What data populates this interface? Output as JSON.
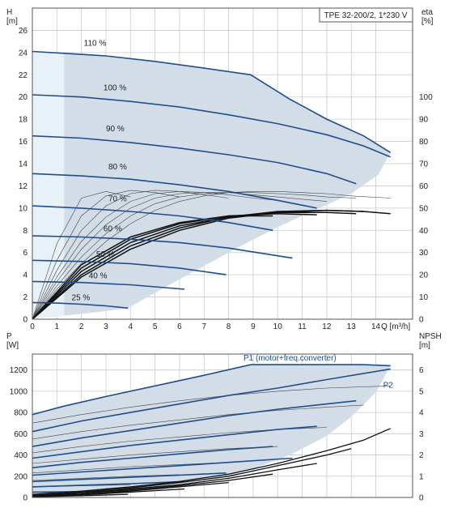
{
  "title_box": "TPE 32-200/2, 1*230 V",
  "colors": {
    "envelope_fill": "#d3dde8",
    "left_strip": "#e8f0f8",
    "curve_blue": "#1f4e8c",
    "curve_black": "#111111",
    "curve_thin": "#444444"
  },
  "chart_data": [
    {
      "type": "line",
      "panel": "H-Q",
      "ylabel_left": "H\n[m]",
      "ylabel_right": "eta\n[%]",
      "xlabel": "Q [m³/h]",
      "xlim": [
        0,
        15.5
      ],
      "ylim": [
        0,
        28
      ],
      "xticks": [
        0,
        1,
        2,
        3,
        4,
        5,
        6,
        7,
        8,
        9,
        10,
        11,
        12,
        13,
        14
      ],
      "yticks_left": [
        0,
        2,
        4,
        6,
        8,
        10,
        12,
        14,
        16,
        18,
        20,
        22,
        24,
        26
      ],
      "yticks_right": [
        0,
        10,
        20,
        30,
        40,
        50,
        60,
        70,
        80,
        90,
        100
      ],
      "right_axis_scale_H_per_percent": 0.2,
      "speed_curves": [
        {
          "label": "110 %",
          "x": [
            0,
            1.5,
            3,
            5,
            7,
            8.9,
            10.5,
            12,
            13.5,
            14.6
          ],
          "y": [
            24.1,
            23.9,
            23.7,
            23.2,
            22.6,
            22.0,
            19.8,
            18.0,
            16.5,
            15.0
          ]
        },
        {
          "label": "100 %",
          "x": [
            0,
            2,
            4,
            6,
            8,
            10,
            12,
            13.5,
            14.6
          ],
          "y": [
            20.2,
            20.0,
            19.6,
            19.1,
            18.4,
            17.6,
            16.6,
            15.6,
            14.6
          ]
        },
        {
          "label": "90 %",
          "x": [
            0,
            2,
            4,
            6,
            8,
            10,
            12,
            13.2
          ],
          "y": [
            16.5,
            16.3,
            15.9,
            15.4,
            14.8,
            14.1,
            13.1,
            12.2
          ]
        },
        {
          "label": "80 %",
          "x": [
            0,
            2,
            4,
            6,
            8,
            10,
            11.6
          ],
          "y": [
            13.1,
            12.9,
            12.6,
            12.1,
            11.5,
            10.7,
            10.0
          ]
        },
        {
          "label": "70 %",
          "x": [
            0,
            2,
            4,
            6,
            8,
            9.8
          ],
          "y": [
            10.2,
            10.0,
            9.7,
            9.3,
            8.7,
            8.0
          ]
        },
        {
          "label": "60 %",
          "x": [
            0,
            2,
            4,
            6,
            8,
            10.6
          ],
          "y": [
            7.5,
            7.4,
            7.2,
            6.9,
            6.4,
            5.5
          ]
        },
        {
          "label": "50 %",
          "x": [
            0,
            2,
            4,
            6,
            7.9
          ],
          "y": [
            5.3,
            5.2,
            5.0,
            4.6,
            4.0
          ]
        },
        {
          "label": "40 %",
          "x": [
            0,
            2,
            4,
            6.2
          ],
          "y": [
            3.4,
            3.3,
            3.1,
            2.7
          ]
        },
        {
          "label": "25 %",
          "x": [
            0,
            1,
            2,
            3,
            3.9
          ],
          "y": [
            1.5,
            1.45,
            1.35,
            1.2,
            1.0
          ]
        }
      ],
      "speed_label_positions": [
        {
          "label": "110 %",
          "x": 2.1,
          "y": 24.6
        },
        {
          "label": "100 %",
          "x": 2.9,
          "y": 20.6
        },
        {
          "label": "90 %",
          "x": 3.0,
          "y": 16.9
        },
        {
          "label": "80 %",
          "x": 3.1,
          "y": 13.5
        },
        {
          "label": "70 %",
          "x": 3.1,
          "y": 10.6
        },
        {
          "label": "60 %",
          "x": 2.9,
          "y": 7.9
        },
        {
          "label": "50 %",
          "x": 2.6,
          "y": 5.6
        },
        {
          "label": "40 %",
          "x": 2.3,
          "y": 3.7
        },
        {
          "label": "25 %",
          "x": 1.6,
          "y": 1.7
        }
      ],
      "envelope": {
        "x": [
          0,
          1.5,
          3,
          5,
          7,
          8.9,
          10.5,
          12,
          13.5,
          14.6,
          14.1,
          13.0,
          11.5,
          10.0,
          8.5,
          7.0,
          5.5,
          3.9,
          2.5,
          1.2,
          0
        ],
        "y": [
          24.1,
          23.9,
          23.7,
          23.2,
          22.6,
          22.0,
          19.8,
          18.0,
          16.5,
          15.0,
          13.0,
          11.3,
          9.8,
          8.3,
          6.6,
          4.8,
          3.0,
          1.0,
          0.6,
          0.3,
          0
        ]
      },
      "efficiency_curves_bold": [
        {
          "x": [
            0,
            2,
            4,
            6,
            8,
            10,
            12,
            13.5,
            14.6
          ],
          "y": [
            0,
            3.8,
            6.3,
            8.0,
            9.1,
            9.6,
            9.8,
            9.7,
            9.5
          ]
        },
        {
          "x": [
            0,
            2,
            4,
            6,
            8,
            10,
            12,
            13.5
          ],
          "y": [
            0,
            4.0,
            6.6,
            8.2,
            9.2,
            9.7,
            9.8,
            9.7
          ]
        },
        {
          "x": [
            0,
            2,
            4,
            6,
            8,
            10,
            12,
            13.2
          ],
          "y": [
            0,
            4.3,
            6.9,
            8.4,
            9.2,
            9.6,
            9.6,
            9.5
          ]
        },
        {
          "x": [
            0,
            2,
            4,
            6,
            8,
            10,
            11.6
          ],
          "y": [
            0,
            4.6,
            7.2,
            8.6,
            9.3,
            9.5,
            9.4
          ]
        },
        {
          "x": [
            0,
            2,
            4,
            6,
            8,
            9.8
          ],
          "y": [
            0,
            4.9,
            7.4,
            8.7,
            9.3,
            9.3
          ]
        }
      ],
      "efficiency_curves_thin": [
        {
          "x": [
            0,
            1,
            2,
            3,
            4.0,
            5,
            6,
            7,
            8,
            9,
            10,
            11,
            12,
            13,
            14.6
          ],
          "y": [
            0,
            2.7,
            5.0,
            7.0,
            8.6,
            9.8,
            10.6,
            11.1,
            11.4,
            11.5,
            11.5,
            11.4,
            11.3,
            11.1,
            10.9
          ]
        },
        {
          "x": [
            0,
            1,
            2,
            3,
            4,
            5,
            6,
            7,
            8,
            9,
            10,
            11,
            12,
            13.2
          ],
          "y": [
            0,
            3.0,
            5.6,
            7.7,
            9.3,
            10.4,
            11.0,
            11.3,
            11.4,
            11.4,
            11.3,
            11.2,
            11.0,
            10.9
          ]
        },
        {
          "x": [
            0,
            1,
            2,
            3,
            4,
            5,
            6,
            7,
            8,
            9,
            10,
            11,
            12
          ],
          "y": [
            0,
            3.4,
            6.3,
            8.5,
            10.0,
            10.9,
            11.3,
            11.4,
            11.4,
            11.2,
            11.0,
            10.8,
            10.6
          ]
        },
        {
          "x": [
            0,
            1,
            2,
            3,
            4,
            5,
            6,
            7,
            8,
            9,
            10
          ],
          "y": [
            0,
            3.8,
            7.0,
            9.2,
            10.6,
            11.3,
            11.5,
            11.4,
            11.2,
            10.9,
            10.7
          ]
        },
        {
          "x": [
            0,
            1,
            2,
            3,
            4,
            5,
            6,
            7,
            8
          ],
          "y": [
            0,
            4.4,
            8.0,
            10.2,
            11.3,
            11.6,
            11.5,
            11.2,
            10.9
          ]
        },
        {
          "x": [
            0,
            1,
            2,
            3,
            4,
            5,
            6
          ],
          "y": [
            0,
            5.3,
            9.3,
            11.1,
            11.6,
            11.4,
            11.0
          ]
        },
        {
          "x": [
            0,
            1,
            2,
            3,
            4
          ],
          "y": [
            0,
            6.8,
            10.9,
            11.5,
            11.0
          ]
        }
      ]
    },
    {
      "type": "line",
      "panel": "P-NPSH",
      "ylabel_left": "P\n[W]",
      "ylabel_right": "NPSH\n[m]",
      "xlim": [
        0,
        15.5
      ],
      "ylim": [
        0,
        1350
      ],
      "yticks_left": [
        0,
        200,
        400,
        600,
        800,
        1000,
        1200
      ],
      "yticks_right": [
        0,
        1,
        2,
        3,
        4,
        5,
        6
      ],
      "right_axis_scale_W_per_m": 200,
      "annotations": [
        {
          "text": "P1 (motor+freq.converter)",
          "x": 10.5,
          "y": 1290
        },
        {
          "text": "P2",
          "x": 14.3,
          "y": 1035
        }
      ],
      "p1_curves": [
        {
          "x": [
            0,
            1.3,
            3,
            5,
            7,
            8.9,
            10.5,
            12,
            13.5,
            14.6
          ],
          "y": [
            780,
            860,
            950,
            1050,
            1150,
            1250,
            1250,
            1250,
            1250,
            1240
          ]
        },
        {
          "x": [
            0,
            2,
            4,
            6,
            8,
            10,
            12,
            14.6
          ],
          "y": [
            620,
            720,
            800,
            880,
            960,
            1030,
            1110,
            1210
          ]
        },
        {
          "x": [
            0,
            2,
            4,
            6,
            8,
            10,
            12,
            13.2
          ],
          "y": [
            480,
            560,
            630,
            700,
            770,
            830,
            880,
            910
          ]
        },
        {
          "x": [
            0,
            2,
            4,
            6,
            8,
            10,
            11.6
          ],
          "y": [
            370,
            430,
            490,
            540,
            590,
            640,
            670
          ]
        },
        {
          "x": [
            0,
            2,
            4,
            6,
            8,
            9.8
          ],
          "y": [
            280,
            330,
            370,
            410,
            450,
            480
          ]
        },
        {
          "x": [
            0,
            2,
            4,
            6,
            8,
            10.6
          ],
          "y": [
            210,
            240,
            270,
            300,
            330,
            370
          ]
        },
        {
          "x": [
            0,
            2,
            4,
            6,
            7.9
          ],
          "y": [
            150,
            170,
            190,
            210,
            230
          ]
        },
        {
          "x": [
            0,
            2,
            4,
            6.2
          ],
          "y": [
            100,
            115,
            130,
            150
          ]
        },
        {
          "x": [
            0,
            2,
            3.9
          ],
          "y": [
            50,
            55,
            65
          ]
        }
      ],
      "p2_curves": [
        {
          "x": [
            0,
            2,
            4,
            6,
            8,
            10,
            12,
            14.6
          ],
          "y": [
            700,
            780,
            850,
            910,
            960,
            1000,
            1030,
            1050
          ]
        },
        {
          "x": [
            0,
            2,
            4,
            6,
            8,
            10,
            12,
            13.5
          ],
          "y": [
            550,
            620,
            680,
            730,
            780,
            820,
            850,
            870
          ]
        },
        {
          "x": [
            0,
            2,
            4,
            6,
            8,
            10,
            12
          ],
          "y": [
            420,
            480,
            530,
            570,
            610,
            640,
            660
          ]
        },
        {
          "x": [
            0,
            2,
            4,
            6,
            8,
            10
          ],
          "y": [
            320,
            360,
            400,
            430,
            460,
            480
          ]
        },
        {
          "x": [
            0,
            2,
            4,
            6,
            8
          ],
          "y": [
            230,
            260,
            290,
            310,
            330
          ]
        },
        {
          "x": [
            0,
            2,
            4,
            6
          ],
          "y": [
            160,
            180,
            200,
            215
          ]
        },
        {
          "x": [
            0,
            2,
            4
          ],
          "y": [
            100,
            110,
            120
          ]
        }
      ],
      "envelope": {
        "x": [
          0,
          1.3,
          3,
          5,
          7,
          8.9,
          10.5,
          12,
          13.5,
          14.6,
          14.0,
          13.0,
          12.0,
          10.5,
          9.0,
          7.5,
          6.0,
          4.6,
          3.9,
          2.0,
          0
        ],
        "y": [
          780,
          860,
          950,
          1050,
          1150,
          1250,
          1250,
          1250,
          1250,
          1240,
          990,
          760,
          580,
          400,
          270,
          170,
          100,
          55,
          40,
          20,
          10
        ]
      },
      "npsh_curves": [
        {
          "x": [
            0,
            2,
            4,
            6,
            8,
            10,
            12,
            13.5,
            14.6
          ],
          "y": [
            0.15,
            0.3,
            0.5,
            0.75,
            1.1,
            1.6,
            2.2,
            2.7,
            3.25
          ]
        },
        {
          "x": [
            0,
            2,
            4,
            6,
            8,
            10,
            12,
            13.0
          ],
          "y": [
            0.1,
            0.25,
            0.45,
            0.7,
            1.0,
            1.5,
            2.0,
            2.3
          ]
        },
        {
          "x": [
            0,
            2,
            4,
            6,
            8,
            10,
            11.6
          ],
          "y": [
            0.1,
            0.2,
            0.4,
            0.6,
            0.9,
            1.3,
            1.6
          ]
        },
        {
          "x": [
            0,
            2,
            4,
            6,
            8,
            9.8
          ],
          "y": [
            0.05,
            0.2,
            0.35,
            0.55,
            0.8,
            1.1
          ]
        },
        {
          "x": [
            0,
            2,
            4,
            6,
            8.0
          ],
          "y": [
            0.05,
            0.15,
            0.3,
            0.5,
            0.7
          ]
        },
        {
          "x": [
            0,
            2,
            4,
            6.2
          ],
          "y": [
            0.05,
            0.12,
            0.25,
            0.4
          ]
        },
        {
          "x": [
            0,
            2,
            3.9
          ],
          "y": [
            0.03,
            0.08,
            0.15
          ]
        }
      ]
    }
  ]
}
